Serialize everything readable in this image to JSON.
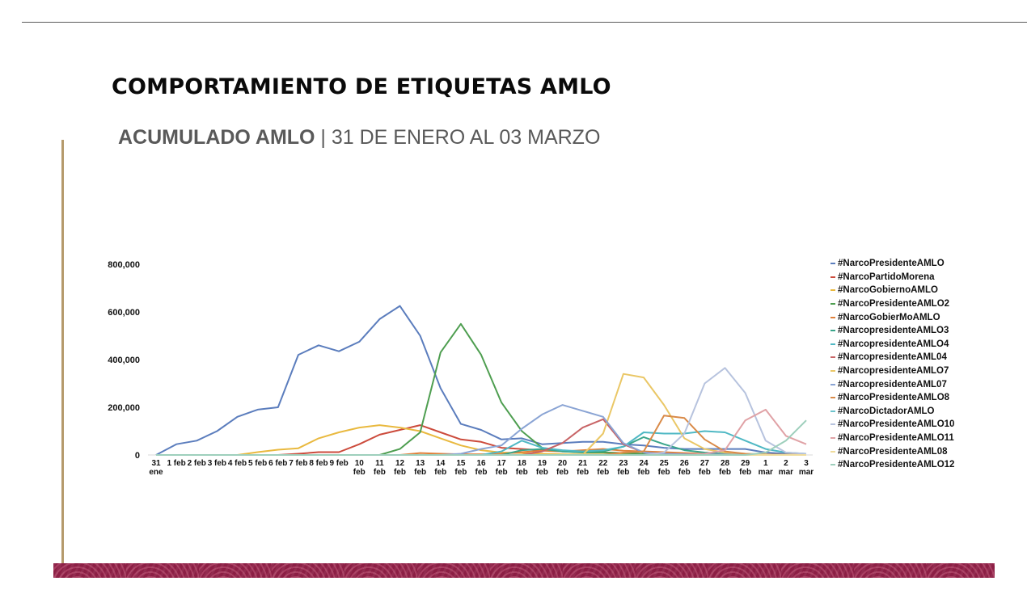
{
  "header": {
    "title": "COMPORTAMIENTO DE ETIQUETAS AMLO",
    "subtitle_strong": "ACUMULADO AMLO",
    "subtitle_rest": " | 31 DE ENERO AL 03 MARZO"
  },
  "colors": {
    "gold_accent": "#b59a6c",
    "band": "#8c1f45",
    "rule": "#5a5a5a"
  },
  "chart_data": {
    "type": "line",
    "title": "COMPORTAMIENTO DE ETIQUETAS AMLO",
    "subtitle": "ACUMULADO AMLO | 31 DE ENERO AL 03 MARZO",
    "xlabel": "",
    "ylabel": "",
    "ylim": [
      0,
      800000
    ],
    "yticks": [
      0,
      200000,
      400000,
      600000,
      800000
    ],
    "ytick_labels": [
      "0",
      "200,000",
      "400,000",
      "600,000",
      "800,000"
    ],
    "grid": false,
    "legend_position": "right",
    "categories": [
      "31 ene",
      "1 feb",
      "2 feb",
      "3 feb",
      "4 feb",
      "5 feb",
      "6 feb",
      "7 feb",
      "8 feb",
      "9 feb",
      "10 feb",
      "11 feb",
      "12 feb",
      "13 feb",
      "14 feb",
      "15 feb",
      "16 feb",
      "17 feb",
      "18 feb",
      "19 feb",
      "20 feb",
      "21 feb",
      "22 feb",
      "23 feb",
      "24 feb",
      "25 feb",
      "26 feb",
      "27 feb",
      "28 feb",
      "29 feb",
      "1 mar",
      "2 mar",
      "3 mar"
    ],
    "x_label_lines": [
      [
        "31",
        "ene"
      ],
      [
        "1 feb"
      ],
      [
        "2 feb"
      ],
      [
        "3 feb"
      ],
      [
        "4 feb"
      ],
      [
        "5 feb"
      ],
      [
        "6 feb"
      ],
      [
        "7 feb"
      ],
      [
        "8 feb"
      ],
      [
        "9 feb"
      ],
      [
        "10",
        "feb"
      ],
      [
        "11",
        "feb"
      ],
      [
        "12",
        "feb"
      ],
      [
        "13",
        "feb"
      ],
      [
        "14",
        "feb"
      ],
      [
        "15",
        "feb"
      ],
      [
        "16",
        "feb"
      ],
      [
        "17",
        "feb"
      ],
      [
        "18",
        "feb"
      ],
      [
        "19",
        "feb"
      ],
      [
        "20",
        "feb"
      ],
      [
        "21",
        "feb"
      ],
      [
        "22",
        "feb"
      ],
      [
        "23",
        "feb"
      ],
      [
        "24",
        "feb"
      ],
      [
        "25",
        "feb"
      ],
      [
        "26",
        "feb"
      ],
      [
        "27",
        "feb"
      ],
      [
        "28",
        "feb"
      ],
      [
        "29",
        "feb"
      ],
      [
        "1",
        "mar"
      ],
      [
        "2",
        "mar"
      ],
      [
        "3",
        "mar"
      ]
    ],
    "series": [
      {
        "name": "#NarcoPresidenteAMLO",
        "color": "#5b7dbd",
        "values": [
          0,
          45000,
          60000,
          100000,
          160000,
          190000,
          200000,
          420000,
          460000,
          435000,
          475000,
          570000,
          625000,
          500000,
          280000,
          130000,
          105000,
          65000,
          70000,
          45000,
          50000,
          55000,
          55000,
          45000,
          40000,
          30000,
          25000,
          25000,
          25000,
          25000,
          10000,
          5000,
          5000
        ]
      },
      {
        "name": "#NarcoPartidoMorena",
        "color": "#cc4b3c",
        "values": [
          0,
          0,
          0,
          0,
          0,
          0,
          0,
          5000,
          12000,
          12000,
          45000,
          85000,
          105000,
          125000,
          95000,
          65000,
          55000,
          30000,
          25000,
          20000,
          15000,
          12000,
          10000,
          8000,
          5000,
          5000,
          3000,
          2000,
          2000,
          2000,
          1000,
          1000,
          1000
        ]
      },
      {
        "name": "#NarcoGobiernoAMLO",
        "color": "#e9b93f",
        "values": [
          0,
          0,
          0,
          0,
          0,
          12000,
          22000,
          28000,
          70000,
          95000,
          115000,
          125000,
          115000,
          100000,
          70000,
          40000,
          20000,
          10000,
          8000,
          5000,
          3000,
          2000,
          2000,
          2000,
          1000,
          1000,
          1000,
          1000,
          1000,
          1000,
          1000,
          1000,
          1000
        ]
      },
      {
        "name": "#NarcoPresidenteAMLO2",
        "color": "#4e9e50",
        "values": [
          0,
          0,
          0,
          0,
          0,
          0,
          0,
          0,
          0,
          0,
          0,
          0,
          25000,
          95000,
          430000,
          550000,
          420000,
          220000,
          100000,
          30000,
          15000,
          10000,
          10000,
          8000,
          5000,
          5000,
          3000,
          2000,
          2000,
          2000,
          1000,
          1000,
          1000
        ]
      },
      {
        "name": "#NarcoGobierMoAMLO",
        "color": "#e0803a",
        "values": [
          0,
          0,
          0,
          0,
          0,
          0,
          0,
          0,
          0,
          0,
          0,
          0,
          0,
          8000,
          5000,
          3000,
          3000,
          5000,
          12000,
          18000,
          15000,
          20000,
          25000,
          18000,
          15000,
          12000,
          8000,
          5000,
          3000,
          2000,
          2000,
          1000,
          1000
        ]
      },
      {
        "name": "#NarcopresidenteAMLO3",
        "color": "#3aa58a",
        "values": [
          0,
          0,
          0,
          0,
          0,
          0,
          0,
          0,
          0,
          0,
          0,
          0,
          0,
          0,
          0,
          0,
          0,
          0,
          20000,
          25000,
          15000,
          12000,
          15000,
          35000,
          75000,
          45000,
          20000,
          10000,
          5000,
          3000,
          2000,
          1000,
          1000
        ]
      },
      {
        "name": "#NarcopresidenteAMLO4",
        "color": "#4fb8c4",
        "values": [
          0,
          0,
          0,
          0,
          0,
          0,
          0,
          0,
          0,
          0,
          0,
          0,
          0,
          0,
          0,
          0,
          0,
          15000,
          60000,
          30000,
          20000,
          15000,
          20000,
          35000,
          95000,
          90000,
          90000,
          100000,
          95000,
          60000,
          25000,
          10000,
          5000
        ]
      },
      {
        "name": "#NarcopresidenteAML04",
        "color": "#c86466",
        "values": [
          0,
          0,
          0,
          0,
          0,
          0,
          0,
          0,
          0,
          0,
          0,
          0,
          0,
          0,
          0,
          0,
          0,
          0,
          0,
          15000,
          50000,
          115000,
          150000,
          45000,
          10000,
          5000,
          3000,
          2000,
          2000,
          1000,
          1000,
          1000,
          1000
        ]
      },
      {
        "name": "#NarcopresidenteAMLO7",
        "color": "#eac766",
        "values": [
          0,
          0,
          0,
          0,
          0,
          0,
          0,
          0,
          0,
          0,
          0,
          0,
          0,
          0,
          0,
          0,
          0,
          0,
          0,
          0,
          0,
          0,
          90000,
          340000,
          325000,
          210000,
          70000,
          25000,
          10000,
          5000,
          2000,
          1000,
          1000
        ]
      },
      {
        "name": "#NarcopresidenteAML07",
        "color": "#8aa4d4",
        "values": [
          0,
          0,
          0,
          0,
          0,
          0,
          0,
          0,
          0,
          0,
          0,
          0,
          0,
          0,
          0,
          5000,
          25000,
          40000,
          110000,
          170000,
          210000,
          185000,
          160000,
          50000,
          10000,
          5000,
          3000,
          2000,
          2000,
          1000,
          1000,
          1000,
          1000
        ]
      },
      {
        "name": "#NarcoPresidenteAMLO8",
        "color": "#d98a48",
        "values": [
          0,
          0,
          0,
          0,
          0,
          0,
          0,
          0,
          0,
          0,
          0,
          0,
          0,
          0,
          0,
          0,
          0,
          0,
          0,
          0,
          0,
          0,
          0,
          10000,
          15000,
          165000,
          155000,
          65000,
          15000,
          5000,
          2000,
          1000,
          1000
        ]
      },
      {
        "name": "#NarcoDictadorAMLO",
        "color": "#6cc3cc",
        "values": [
          0,
          0,
          0,
          0,
          0,
          0,
          0,
          0,
          0,
          0,
          0,
          0,
          0,
          0,
          0,
          0,
          0,
          0,
          0,
          0,
          0,
          0,
          0,
          0,
          0,
          0,
          0,
          0,
          0,
          0,
          0,
          0,
          0
        ]
      },
      {
        "name": "#NarcoPresidenteAMLO10",
        "color": "#b7c3de",
        "values": [
          0,
          0,
          0,
          0,
          0,
          0,
          0,
          0,
          0,
          0,
          0,
          0,
          0,
          0,
          0,
          0,
          0,
          0,
          0,
          0,
          0,
          0,
          0,
          0,
          0,
          10000,
          90000,
          300000,
          365000,
          260000,
          60000,
          10000,
          5000
        ]
      },
      {
        "name": "#NarcoPresidenteAMLO11",
        "color": "#e0a2a6",
        "values": [
          0,
          0,
          0,
          0,
          0,
          0,
          0,
          0,
          0,
          0,
          0,
          0,
          0,
          0,
          0,
          0,
          0,
          0,
          0,
          0,
          0,
          0,
          0,
          0,
          0,
          0,
          0,
          5000,
          20000,
          145000,
          190000,
          80000,
          45000
        ]
      },
      {
        "name": "#NarcoPresidenteAML08",
        "color": "#f0dc9c",
        "values": [
          0,
          0,
          0,
          0,
          0,
          0,
          0,
          0,
          0,
          0,
          0,
          0,
          0,
          0,
          0,
          0,
          0,
          0,
          0,
          0,
          0,
          0,
          0,
          0,
          0,
          0,
          0,
          0,
          0,
          0,
          0,
          0,
          0
        ]
      },
      {
        "name": "#NarcoPresidenteAMLO12",
        "color": "#9ecfbc",
        "values": [
          0,
          0,
          0,
          0,
          0,
          0,
          0,
          0,
          0,
          0,
          0,
          0,
          0,
          0,
          0,
          0,
          0,
          0,
          0,
          0,
          0,
          0,
          0,
          0,
          0,
          0,
          0,
          0,
          0,
          0,
          10000,
          60000,
          145000
        ]
      }
    ]
  }
}
